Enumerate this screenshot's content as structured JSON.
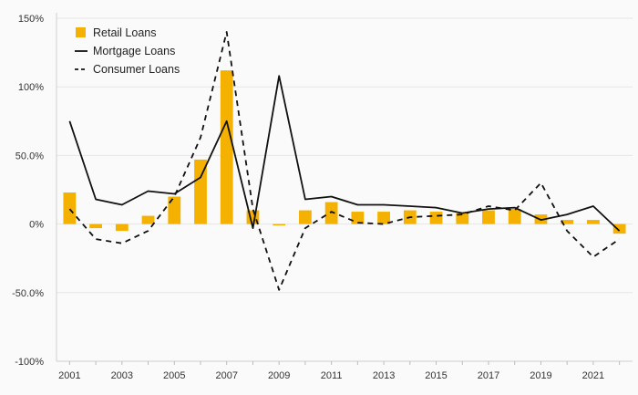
{
  "chart_data": {
    "type": "bar+line",
    "title": "",
    "xlabel": "",
    "ylabel": "",
    "ylim": [
      -100,
      150
    ],
    "yticks": [
      {
        "value": 150,
        "label": "150%"
      },
      {
        "value": 100,
        "label": "100%"
      },
      {
        "value": 50,
        "label": "50.0%"
      },
      {
        "value": 0,
        "label": "0%"
      },
      {
        "value": -50,
        "label": "-50.0%"
      },
      {
        "value": -100,
        "label": "-100%"
      }
    ],
    "x": [
      2001,
      2002,
      2003,
      2004,
      2005,
      2006,
      2007,
      2008,
      2009,
      2010,
      2011,
      2012,
      2013,
      2014,
      2015,
      2016,
      2017,
      2018,
      2019,
      2020,
      2021,
      2022
    ],
    "xtick_labels": [
      "2001",
      "2003",
      "2005",
      "2007",
      "2009",
      "2011",
      "2013",
      "2015",
      "2017",
      "2019",
      "2021"
    ],
    "legend": {
      "position": "top-left"
    },
    "series": [
      {
        "name": "Retail Loans",
        "kind": "bar",
        "color": "#f5b100",
        "values": [
          23,
          -3,
          -5,
          6,
          20,
          47,
          112,
          10,
          -1,
          10,
          16,
          9,
          9,
          10,
          9,
          8,
          10,
          11,
          7,
          3,
          3,
          -7
        ]
      },
      {
        "name": "Mortgage Loans",
        "kind": "line",
        "style": "solid",
        "color": "#111111",
        "values": [
          75,
          18,
          14,
          24,
          22,
          34,
          75,
          -3,
          108,
          18,
          20,
          14,
          14,
          13,
          12,
          8,
          11,
          12,
          3,
          7,
          13,
          -5
        ]
      },
      {
        "name": "Consumer Loans",
        "kind": "line",
        "style": "dashed",
        "color": "#111111",
        "values": [
          11,
          -11,
          -14,
          -5,
          20,
          63,
          140,
          11,
          -48,
          -3,
          9,
          1,
          0,
          5,
          6,
          7,
          13,
          10,
          30,
          -5,
          -24,
          -11
        ]
      }
    ]
  }
}
